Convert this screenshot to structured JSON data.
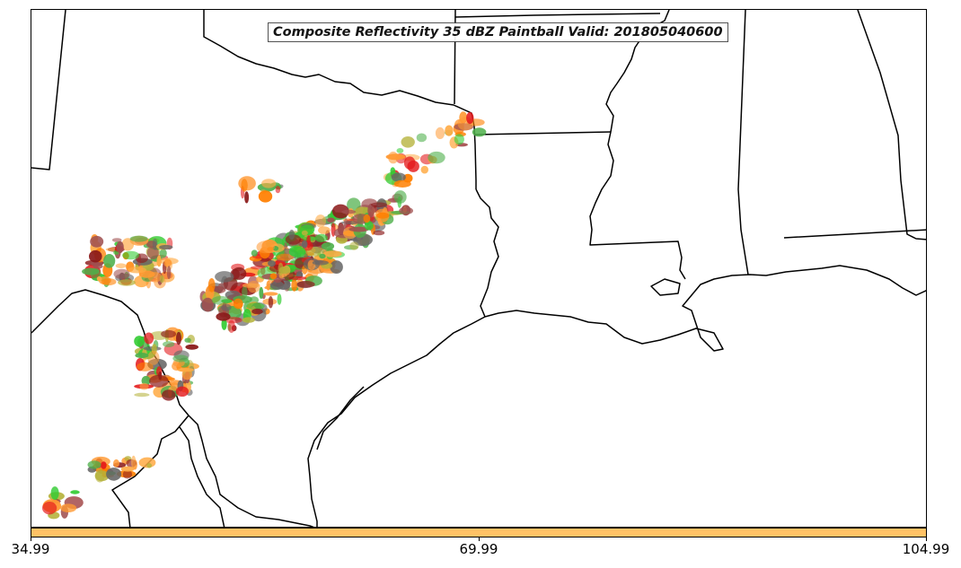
{
  "map": {
    "title": "Composite Reflectivity 35 dBZ Paintball Valid: 201805040600",
    "boundary_color": "#000000",
    "background_color": "#ffffff"
  },
  "paintball_colors": [
    "#e41a1c",
    "#ff7f00",
    "#4daf4a",
    "#b5b23a",
    "#8b1a1a",
    "#ff9933",
    "#33cc33",
    "#666666",
    "#a05050",
    "#ffaa44"
  ],
  "colorbar": {
    "color": "#ffc266",
    "labels": [
      "34.99",
      "69.99",
      "104.99"
    ]
  }
}
